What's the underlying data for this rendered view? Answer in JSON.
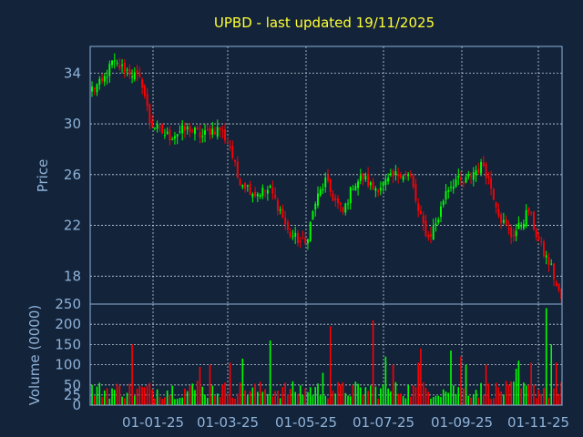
{
  "title": "UPBD - last updated 19/11/2025",
  "colors": {
    "background": "#13233a",
    "title": "#ffff33",
    "axis": "#8fb3d9",
    "grid": "#c9d3de",
    "up": "#00ff00",
    "down": "#ff0000"
  },
  "chart_data": [
    {
      "type": "candlestick",
      "ylabel": "Price",
      "ylim": [
        15.8,
        36.1
      ],
      "yticks": [
        "18",
        "22",
        "26",
        "30",
        "34"
      ],
      "xticks": [
        "01-01-25",
        "01-03-25",
        "01-05-25",
        "01-07-25",
        "01-09-25",
        "01-11-25"
      ],
      "grid": true,
      "series": [
        {
          "x_start": "21-11-24",
          "x_end": "19-11-25",
          "close_path": [
            [
              0,
              32.8
            ],
            [
              4,
              33.2
            ],
            [
              8,
              34.8
            ],
            [
              12,
              34.4
            ],
            [
              16,
              34.0
            ],
            [
              20,
              33.2
            ],
            [
              23,
              30.2
            ],
            [
              27,
              29.4
            ],
            [
              31,
              29.0
            ],
            [
              35,
              29.4
            ],
            [
              39,
              29.6
            ],
            [
              44,
              29.0
            ],
            [
              47,
              29.5
            ],
            [
              51,
              29.6
            ],
            [
              55,
              28.2
            ],
            [
              58,
              25.8
            ],
            [
              61,
              25.2
            ],
            [
              65,
              24.5
            ],
            [
              68,
              24.7
            ],
            [
              71,
              24.8
            ],
            [
              75,
              23.2
            ],
            [
              78,
              21.5
            ],
            [
              81,
              21.0
            ],
            [
              85,
              20.5
            ],
            [
              89,
              23.8
            ],
            [
              93,
              25.5
            ],
            [
              96,
              24.2
            ],
            [
              100,
              23.0
            ],
            [
              104,
              25.2
            ],
            [
              108,
              25.8
            ],
            [
              112,
              24.9
            ],
            [
              116,
              25.2
            ],
            [
              120,
              25.8
            ],
            [
              123,
              26.2
            ],
            [
              127,
              25.8
            ],
            [
              130,
              23.0
            ],
            [
              134,
              21.0
            ],
            [
              138,
              22.6
            ],
            [
              141,
              24.8
            ],
            [
              145,
              25.6
            ],
            [
              148,
              25.3
            ],
            [
              152,
              26.2
            ],
            [
              156,
              26.8
            ],
            [
              159,
              25.0
            ],
            [
              163,
              22.5
            ],
            [
              167,
              21.2
            ],
            [
              170,
              21.8
            ],
            [
              174,
              23.2
            ],
            [
              177,
              21.3
            ],
            [
              180,
              19.8
            ],
            [
              183,
              18.7
            ],
            [
              185,
              17.2
            ],
            [
              187,
              16.2
            ]
          ]
        }
      ]
    },
    {
      "type": "bar",
      "ylabel": "Volume (0000)",
      "ylim": [
        0,
        250
      ],
      "yticks": [
        "0",
        "25",
        "50",
        "100",
        "150",
        "200",
        "250"
      ],
      "xticks": [
        "01-01-25",
        "01-03-25",
        "01-05-25",
        "01-07-25",
        "01-09-25",
        "01-11-25"
      ],
      "grid": true,
      "series": [
        {
          "spikes": [
            [
              16,
              150
            ],
            [
              42,
              60
            ],
            [
              43,
              95
            ],
            [
              47,
              100
            ],
            [
              55,
              105
            ],
            [
              60,
              115
            ],
            [
              71,
              160
            ],
            [
              92,
              80
            ],
            [
              95,
              195
            ],
            [
              112,
              210
            ],
            [
              117,
              120
            ],
            [
              120,
              100
            ],
            [
              130,
              105
            ],
            [
              131,
              140
            ],
            [
              143,
              135
            ],
            [
              147,
              120
            ],
            [
              149,
              100
            ],
            [
              157,
              100
            ],
            [
              169,
              90
            ],
            [
              170,
              110
            ],
            [
              175,
              105
            ],
            [
              181,
              240
            ],
            [
              183,
              150
            ],
            [
              185,
              105
            ]
          ]
        }
      ]
    }
  ]
}
